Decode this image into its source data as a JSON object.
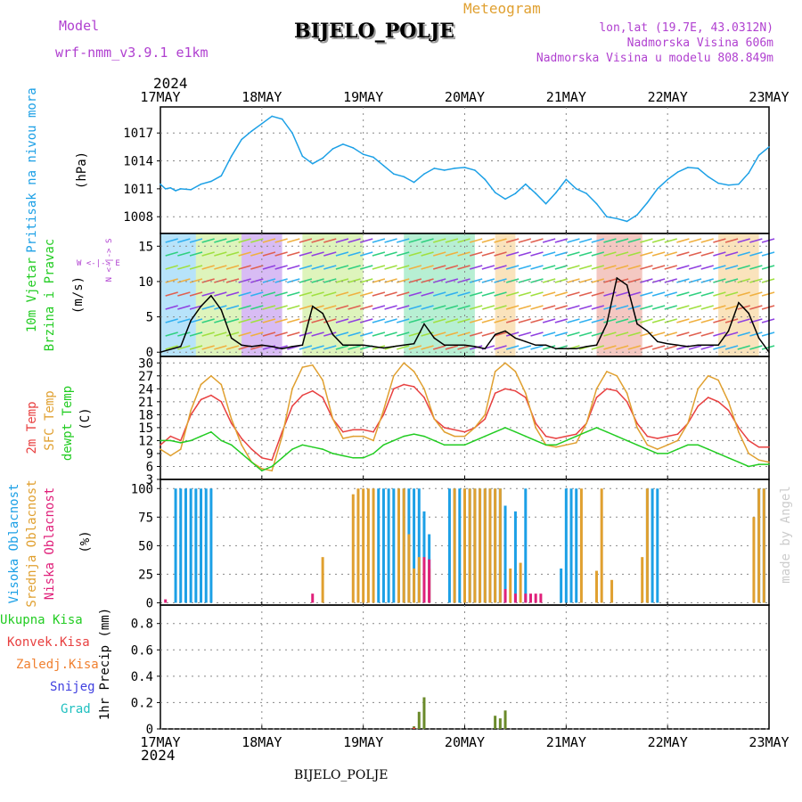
{
  "header": {
    "title": "BIJELO_POLJE",
    "subtitle": "Meteogram",
    "model_label": "Model",
    "model_name": "wrf-nmm_v3.9.1 e1km",
    "coords": "lon,lat (19.7E, 43.0312N)",
    "elevation": "Nadmorska Visina 606m",
    "model_elevation": "Nadmorska Visina u modelu 808.849m",
    "year_top": "2024",
    "year_bottom": "2024",
    "footer_station": "BIJELO_POLJE",
    "watermark": "made by Angel"
  },
  "time_axis": {
    "labels": [
      "17MAY",
      "18MAY",
      "19MAY",
      "20MAY",
      "21MAY",
      "22MAY",
      "23MAY"
    ]
  },
  "colors": {
    "pressure": "#1ca0e6",
    "wind_label": "#22cc22",
    "temp2m": "#e84040",
    "sfc": "#e0a030",
    "dewpt": "#22cc22",
    "visoka": "#1ca0e6",
    "srednja": "#e0a030",
    "niska": "#e0207a",
    "ukupna": "#22cc22",
    "konvek": "#e84040",
    "zaledj": "#f08030",
    "snijeg": "#4040e0",
    "grad": "#20c0c0",
    "purple": "#b040d0"
  },
  "panels": {
    "pressure": {
      "label": "Pritisak na nivou mora",
      "unit": "(hPa)"
    },
    "wind": {
      "label1": "10m Vjetar",
      "label2": "Brzina i Pravac",
      "unit": "(m/s)",
      "compass_ns": "N <-|-> S",
      "compass_we": "W <-|-> E"
    },
    "temp": {
      "label1": "2m Temp",
      "label2": "SFC Temp",
      "label3": "dewpt Temp",
      "unit": "(C)"
    },
    "cloud": {
      "label1": "Visoka Oblacnost",
      "label2": "Srednja Oblacnost",
      "label3": "Niska Oblacnost",
      "unit": "(%)"
    },
    "precip": {
      "label1": "Ukupna Kisa",
      "label2": "Konvek.Kisa",
      "label3": "Zaledj.Kisa",
      "label4": "Snijeg",
      "label5": "Grad",
      "unit": "1hr Precip (mm)"
    }
  },
  "chart_data": [
    {
      "type": "line",
      "name": "pressure",
      "ylabel": "Pritisak na nivou mora (hPa)",
      "yticks": [
        1008,
        1011,
        1014,
        1017
      ],
      "ylim": [
        1006.2,
        1019.8
      ],
      "grid": true,
      "series": [
        {
          "name": "Pritisak",
          "x": [
            0,
            0.05,
            0.1,
            0.15,
            0.2,
            0.3,
            0.4,
            0.5,
            0.6,
            0.7,
            0.8,
            0.9,
            1,
            1.1,
            1.2,
            1.3,
            1.4,
            1.5,
            1.6,
            1.7,
            1.8,
            1.9,
            2,
            2.1,
            2.2,
            2.3,
            2.4,
            2.5,
            2.6,
            2.7,
            2.8,
            2.9,
            3,
            3.1,
            3.2,
            3.3,
            3.4,
            3.5,
            3.6,
            3.7,
            3.8,
            3.9,
            4,
            4.1,
            4.2,
            4.3,
            4.4,
            4.5,
            4.6,
            4.7,
            4.8,
            4.9,
            5,
            5.1,
            5.2,
            5.3,
            5.4,
            5.5,
            5.6,
            5.7,
            5.8,
            5.9,
            6
          ],
          "values": [
            1011.5,
            1011.0,
            1011.1,
            1010.8,
            1011.0,
            1010.9,
            1011.5,
            1011.8,
            1012.4,
            1014.5,
            1016.3,
            1017.2,
            1018.0,
            1018.8,
            1018.5,
            1017.0,
            1014.5,
            1013.7,
            1014.3,
            1015.3,
            1015.8,
            1015.4,
            1014.7,
            1014.4,
            1013.5,
            1012.6,
            1012.3,
            1011.7,
            1012.6,
            1013.2,
            1013.0,
            1013.2,
            1013.3,
            1013.0,
            1012.0,
            1010.6,
            1009.9,
            1010.5,
            1011.5,
            1010.5,
            1009.4,
            1010.6,
            1012.0,
            1011.0,
            1010.5,
            1009.4,
            1008.0,
            1007.8,
            1007.5,
            1008.2,
            1009.5,
            1011.0,
            1012.0,
            1012.8,
            1013.3,
            1013.2,
            1012.3,
            1011.6,
            1011.4,
            1011.5,
            1012.7,
            1014.6,
            1015.5
          ]
        }
      ],
      "xlabels": [
        "17MAY",
        "18MAY",
        "19MAY",
        "20MAY",
        "21MAY",
        "22MAY",
        "23MAY"
      ]
    },
    {
      "type": "line",
      "name": "wind",
      "ylabel": "10m Vjetar Brzina i Pravac (m/s)",
      "yticks": [
        0,
        5,
        10,
        15
      ],
      "ylim": [
        -0.6,
        16.8
      ],
      "grid": true,
      "series": [
        {
          "name": "Brzina",
          "x": [
            0,
            0.2,
            0.3,
            0.4,
            0.5,
            0.6,
            0.7,
            0.8,
            0.9,
            1,
            1.1,
            1.2,
            1.3,
            1.4,
            1.5,
            1.6,
            1.7,
            1.8,
            1.9,
            2,
            2.1,
            2.2,
            2.3,
            2.4,
            2.5,
            2.6,
            2.7,
            2.8,
            2.9,
            3,
            3.1,
            3.2,
            3.3,
            3.4,
            3.5,
            3.6,
            3.7,
            3.8,
            3.9,
            4,
            4.1,
            4.2,
            4.3,
            4.4,
            4.5,
            4.6,
            4.7,
            4.8,
            4.9,
            5,
            5.1,
            5.2,
            5.3,
            5.4,
            5.5,
            5.6,
            5.7,
            5.8,
            5.9,
            6
          ],
          "values": [
            0,
            0.8,
            4.5,
            6.5,
            8.0,
            6.0,
            2.0,
            1.0,
            0.8,
            1.0,
            0.8,
            0.5,
            0.8,
            1.0,
            6.5,
            5.5,
            2.5,
            1.0,
            1.0,
            1.0,
            0.8,
            0.6,
            0.8,
            1.0,
            1.2,
            4.0,
            2.0,
            1.0,
            1.0,
            1.0,
            0.8,
            0.5,
            2.5,
            3.0,
            2.0,
            1.5,
            1.0,
            1.0,
            0.5,
            0.5,
            0.5,
            0.8,
            1.0,
            4.0,
            10.5,
            9.5,
            4.0,
            3.0,
            1.5,
            1.2,
            1.0,
            0.8,
            1.0,
            1.0,
            1.0,
            3.0,
            7.0,
            5.5,
            2.0,
            0.0
          ]
        }
      ],
      "xlabels": [
        "17MAY",
        "18MAY",
        "19MAY",
        "20MAY",
        "21MAY",
        "22MAY",
        "23MAY"
      ]
    },
    {
      "type": "line",
      "name": "temperature",
      "ylabel": "Temp (C)",
      "yticks": [
        3,
        6,
        9,
        12,
        15,
        18,
        21,
        24,
        27,
        30
      ],
      "ylim": [
        3,
        31.5
      ],
      "grid": true,
      "series": [
        {
          "name": "2m Temp",
          "x": [
            0,
            0.1,
            0.2,
            0.3,
            0.4,
            0.5,
            0.6,
            0.7,
            0.8,
            0.9,
            1,
            1.1,
            1.2,
            1.3,
            1.4,
            1.5,
            1.6,
            1.7,
            1.8,
            1.9,
            2,
            2.1,
            2.2,
            2.3,
            2.4,
            2.5,
            2.6,
            2.7,
            2.8,
            2.9,
            3,
            3.1,
            3.2,
            3.3,
            3.4,
            3.5,
            3.6,
            3.7,
            3.8,
            3.9,
            4,
            4.1,
            4.2,
            4.3,
            4.4,
            4.5,
            4.6,
            4.7,
            4.8,
            4.9,
            5,
            5.1,
            5.2,
            5.3,
            5.4,
            5.5,
            5.6,
            5.7,
            5.8,
            5.9,
            6
          ],
          "values": [
            11,
            13,
            12,
            18,
            21.5,
            22.5,
            21,
            16,
            12.5,
            10,
            8,
            7.5,
            14,
            20,
            22.5,
            23.5,
            22,
            17,
            14,
            14.5,
            14.5,
            14,
            18,
            24,
            25,
            24.5,
            22,
            17,
            15,
            14.5,
            14,
            15,
            17,
            23,
            24,
            23.5,
            22,
            16,
            13,
            12.5,
            13,
            13.5,
            16,
            22,
            24,
            23.5,
            21,
            16,
            13,
            12.5,
            13,
            13.5,
            16,
            20,
            22,
            21,
            19,
            15,
            12,
            10.5,
            10.5
          ]
        },
        {
          "name": "SFC Temp",
          "x": [
            0,
            0.1,
            0.2,
            0.3,
            0.4,
            0.5,
            0.6,
            0.7,
            0.8,
            0.9,
            1,
            1.1,
            1.2,
            1.3,
            1.4,
            1.5,
            1.6,
            1.7,
            1.8,
            1.9,
            2,
            2.1,
            2.2,
            2.3,
            2.4,
            2.5,
            2.6,
            2.7,
            2.8,
            2.9,
            3,
            3.1,
            3.2,
            3.3,
            3.4,
            3.5,
            3.6,
            3.7,
            3.8,
            3.9,
            4,
            4.1,
            4.2,
            4.3,
            4.4,
            4.5,
            4.6,
            4.7,
            4.8,
            4.9,
            5,
            5.1,
            5.2,
            5.3,
            5.4,
            5.5,
            5.6,
            5.7,
            5.8,
            5.9,
            6
          ],
          "values": [
            10,
            8.5,
            10,
            19,
            25,
            27,
            25,
            17,
            11,
            7,
            5.5,
            5,
            13,
            24,
            29,
            29.5,
            26,
            17,
            12.5,
            13,
            13,
            12,
            19,
            27,
            30,
            28,
            24,
            17,
            14,
            13,
            13,
            15,
            18,
            28,
            30,
            28,
            23,
            15,
            11,
            10.5,
            11,
            11.5,
            16,
            24,
            28,
            27,
            23,
            15,
            11,
            10,
            11,
            12,
            16,
            24,
            27,
            26,
            21,
            14,
            9,
            7.5,
            7
          ]
        },
        {
          "name": "dewpt Temp",
          "x": [
            0,
            0.1,
            0.2,
            0.3,
            0.4,
            0.5,
            0.6,
            0.7,
            0.8,
            0.9,
            1,
            1.1,
            1.2,
            1.3,
            1.4,
            1.5,
            1.6,
            1.7,
            1.8,
            1.9,
            2,
            2.1,
            2.2,
            2.3,
            2.4,
            2.5,
            2.6,
            2.7,
            2.8,
            2.9,
            3,
            3.1,
            3.2,
            3.3,
            3.4,
            3.5,
            3.6,
            3.7,
            3.8,
            3.9,
            4,
            4.1,
            4.2,
            4.3,
            4.4,
            4.5,
            4.6,
            4.7,
            4.8,
            4.9,
            5,
            5.1,
            5.2,
            5.3,
            5.4,
            5.5,
            5.6,
            5.7,
            5.8,
            5.9,
            6
          ],
          "values": [
            12,
            12,
            11.5,
            12,
            13,
            14,
            12,
            11,
            9,
            7,
            5,
            6,
            8,
            10,
            11,
            10.5,
            10,
            9,
            8.5,
            8,
            8,
            9,
            11,
            12,
            13,
            13.5,
            13,
            12,
            11,
            11,
            11,
            12,
            13,
            14,
            15,
            14,
            13,
            12,
            11,
            11,
            12,
            13,
            14,
            15,
            14,
            13,
            12,
            11,
            10,
            9,
            9,
            10,
            11,
            11,
            10,
            9,
            8,
            7,
            6,
            6.5,
            6.5
          ]
        }
      ],
      "xlabels": [
        "17MAY",
        "18MAY",
        "19MAY",
        "20MAY",
        "21MAY",
        "22MAY",
        "23MAY"
      ]
    },
    {
      "type": "bar",
      "name": "cloud",
      "ylabel": "Oblacnost (%)",
      "yticks": [
        0,
        25,
        50,
        75,
        100
      ],
      "ylim": [
        -2,
        108
      ],
      "grid": true,
      "series": [
        {
          "name": "Visoka Oblacnost",
          "x": [
            0.15,
            0.2,
            0.25,
            0.3,
            0.35,
            0.4,
            0.45,
            0.5,
            2.15,
            2.2,
            2.25,
            2.3,
            2.35,
            2.4,
            2.45,
            2.5,
            2.55,
            2.6,
            2.65,
            2.85,
            2.9,
            2.95,
            3.0,
            3.05,
            3.1,
            3.15,
            3.2,
            3.25,
            3.3,
            3.35,
            3.4,
            3.5,
            3.6,
            3.95,
            4.0,
            4.05,
            4.1,
            4.8,
            4.85,
            4.9,
            5.9,
            5.95
          ],
          "values": [
            100,
            100,
            100,
            100,
            100,
            100,
            100,
            100,
            100,
            100,
            100,
            100,
            100,
            100,
            100,
            100,
            100,
            80,
            60,
            100,
            100,
            100,
            100,
            100,
            100,
            100,
            100,
            100,
            100,
            100,
            85,
            80,
            100,
            30,
            100,
            100,
            100,
            100,
            100,
            100,
            100,
            100
          ]
        },
        {
          "name": "Srednja Oblacnost",
          "x": [
            1.6,
            1.9,
            1.95,
            2.0,
            2.05,
            2.1,
            2.35,
            2.4,
            2.45,
            2.5,
            2.55,
            2.65,
            2.9,
            3.0,
            3.05,
            3.1,
            3.15,
            3.2,
            3.25,
            3.3,
            3.35,
            3.45,
            3.55,
            4.15,
            4.3,
            4.35,
            4.45,
            4.75,
            4.8,
            5.85,
            5.9,
            5.95
          ],
          "values": [
            40,
            95,
            100,
            100,
            100,
            100,
            100,
            100,
            60,
            30,
            40,
            30,
            100,
            100,
            100,
            100,
            100,
            100,
            100,
            100,
            100,
            30,
            35,
            100,
            28,
            100,
            20,
            40,
            100,
            75,
            100,
            100
          ]
        },
        {
          "name": "Niska Oblacnost",
          "x": [
            0.05,
            1.5,
            2.6,
            2.65,
            3.4,
            3.5,
            3.6,
            3.65,
            3.7,
            3.75
          ],
          "values": [
            3,
            8,
            40,
            38,
            12,
            8,
            8,
            8,
            8,
            8
          ]
        }
      ],
      "xlabels": [
        "17MAY",
        "18MAY",
        "19MAY",
        "20MAY",
        "21MAY",
        "22MAY",
        "23MAY"
      ]
    },
    {
      "type": "bar",
      "name": "precipitation",
      "ylabel": "1hr Precip (mm)",
      "yticks": [
        0,
        0.2,
        0.4,
        0.6,
        0.8
      ],
      "ylim": [
        0,
        0.94
      ],
      "grid": true,
      "series": [
        {
          "name": "Ukupna Kisa",
          "x": [
            2.5,
            2.55,
            2.6,
            3.3,
            3.35,
            3.4
          ],
          "values": [
            0.02,
            0.13,
            0.24,
            0.1,
            0.08,
            0.14
          ]
        },
        {
          "name": "Konvek.Kisa",
          "x": [
            2.5
          ],
          "values": [
            0.01
          ]
        }
      ],
      "xlabels": [
        "17MAY",
        "18MAY",
        "19MAY",
        "20MAY",
        "21MAY",
        "22MAY",
        "23MAY"
      ]
    }
  ]
}
